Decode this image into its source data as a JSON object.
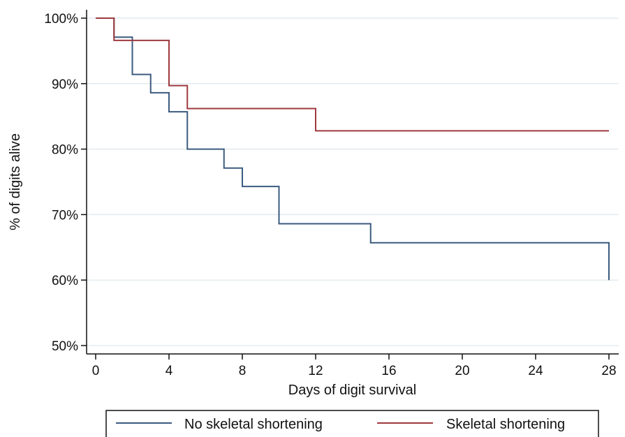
{
  "chart_data": {
    "type": "line",
    "step": true,
    "xlabel": "Days of digit survival",
    "ylabel": "% of digits alive",
    "xlim": [
      0,
      28
    ],
    "ylim": [
      50,
      100
    ],
    "x_ticks": [
      0,
      4,
      8,
      12,
      16,
      20,
      24,
      28
    ],
    "y_ticks": [
      50,
      60,
      70,
      80,
      90,
      100
    ],
    "y_tick_labels": [
      "50%",
      "60%",
      "70%",
      "80%",
      "90%",
      "100%"
    ],
    "grid": true,
    "legend_position": "bottom",
    "series": [
      {
        "name": "No skeletal shortening",
        "color": "#3b5b7f",
        "points": [
          [
            0,
            100
          ],
          [
            1,
            97.1
          ],
          [
            2,
            91.4
          ],
          [
            3,
            88.6
          ],
          [
            4,
            85.7
          ],
          [
            5,
            80.0
          ],
          [
            7,
            77.1
          ],
          [
            8,
            74.3
          ],
          [
            10,
            68.6
          ],
          [
            15,
            65.7
          ],
          [
            28,
            60.0
          ]
        ]
      },
      {
        "name": "Skeletal shortening",
        "color": "#9e3a3e",
        "points": [
          [
            0,
            100
          ],
          [
            1,
            96.6
          ],
          [
            4,
            89.7
          ],
          [
            5,
            86.2
          ],
          [
            12,
            82.8
          ],
          [
            28,
            82.8
          ]
        ]
      }
    ]
  }
}
